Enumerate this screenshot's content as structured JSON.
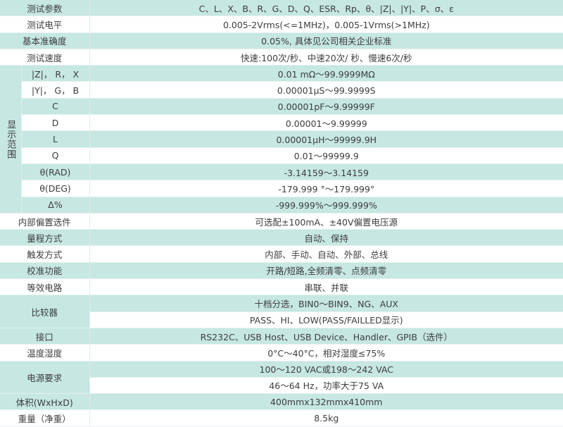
{
  "colors": {
    "stripe": "#c6e7e2",
    "text": "#3d3d3d"
  },
  "rows_top": [
    {
      "label": "测试参数",
      "value": "C、L、X、B、R、G、D、Q、ESR、Rp、θ、|Z|、|Y|、P、σ、ε"
    },
    {
      "label": "测试电平",
      "value": "0.005-2Vrms(<=1MHz)，0.005-1Vrms(>1MHz)"
    },
    {
      "label": "基本准确度",
      "value": "0.05%, 具体见公司相关企业标准"
    },
    {
      "label": "测试速度",
      "value": "快速:100次/秒、中速20次/ 秒、慢速6次/秒"
    }
  ],
  "display_range": {
    "label": "显示范围",
    "rows": [
      {
        "label": "|Z|， R， X",
        "value": "0.01 mΩ～99.9999MΩ"
      },
      {
        "label": "|Y|， G， B",
        "value": "0.00001μS～99.9999S"
      },
      {
        "label": "C",
        "value": "0.00001pF～9.99999F"
      },
      {
        "label": "D",
        "value": "0.00001～9.99999"
      },
      {
        "label": "L",
        "value": "0.00001μH～99999.9H"
      },
      {
        "label": "Q",
        "value": "0.01～99999.9"
      },
      {
        "label": "θ(RAD)",
        "value": "-3.14159～3.14159"
      },
      {
        "label": "θ(DEG)",
        "value": "-179.999 °～179.999°"
      },
      {
        "label": "Δ%",
        "value": "-999.999%～999.999%"
      }
    ]
  },
  "rows_bottom": [
    {
      "label": "内部偏置选件",
      "values": [
        "可选配±100mA、±40V偏置电压源"
      ]
    },
    {
      "label": "量程方式",
      "values": [
        "自动、保持"
      ]
    },
    {
      "label": "触发方式",
      "values": [
        "内部、手动、自动、外部、总线"
      ]
    },
    {
      "label": "校准功能",
      "values": [
        "开路/短路,全频清零、点频清零"
      ]
    },
    {
      "label": "等效电路",
      "values": [
        "串联、并联"
      ]
    },
    {
      "label": "比较器",
      "values": [
        "十档分选，BIN0～BIN9、NG、AUX",
        "PASS、HI、LOW(PASS/FAILLED显示)"
      ]
    },
    {
      "label": "接口",
      "values": [
        "RS232C、USB Host、USB Device、Handler、GPIB（选件）"
      ]
    },
    {
      "label": "温度湿度",
      "values": [
        "0°C～40°C，相对湿度≤75%"
      ]
    },
    {
      "label": "电源要求",
      "values": [
        "100～120 VAC或198～242 VAC",
        "46～64 Hz，功率大于75 VA"
      ]
    },
    {
      "label": "体积(WxHxD)",
      "values": [
        "400mmx132mmx410mm"
      ]
    },
    {
      "label": "重量（净重）",
      "values": [
        "8.5kg"
      ]
    }
  ]
}
